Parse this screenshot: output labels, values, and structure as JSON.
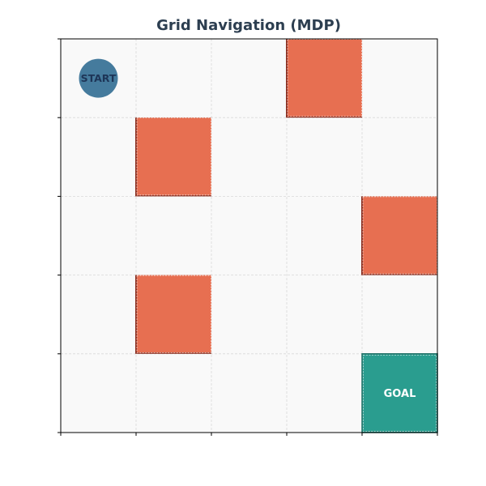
{
  "title": "Grid Navigation (MDP)",
  "grid": {
    "rows": 5,
    "cols": 5
  },
  "start": {
    "row": 0,
    "col": 0,
    "label": "START"
  },
  "goal": {
    "row": 4,
    "col": 4,
    "label": "GOAL"
  },
  "obstacles": [
    {
      "row": 0,
      "col": 3
    },
    {
      "row": 1,
      "col": 1
    },
    {
      "row": 2,
      "col": 4
    },
    {
      "row": 3,
      "col": 1
    }
  ],
  "colors": {
    "title": "#2c3e50",
    "background": "#f9f9f9",
    "grid_line": "#d9d9d9",
    "obstacle_fill": "#e76f51",
    "obstacle_edge": "#8b2e1f",
    "goal_fill": "#2a9d8f",
    "goal_edge": "#1f6f66",
    "goal_text": "#ffffff",
    "start_fill": "#457b9d",
    "start_text": "#1d3557",
    "axis": "#000000"
  }
}
